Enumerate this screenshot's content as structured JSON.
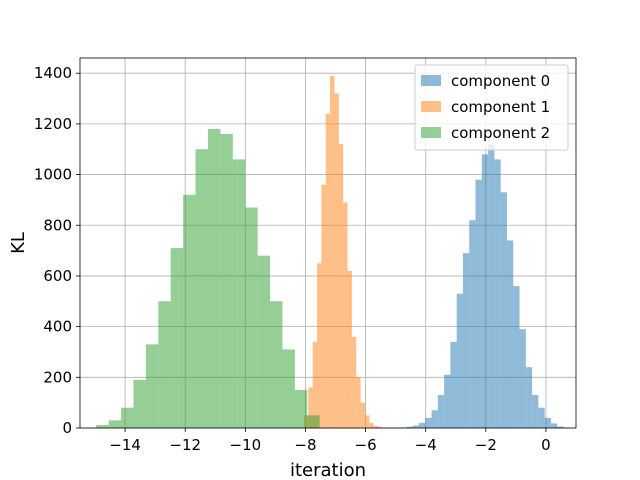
{
  "chart_data": {
    "type": "bar",
    "subtype": "histogram",
    "title": "",
    "xlabel": "iteration",
    "ylabel": "KL",
    "xlim": [
      -15.5,
      1.0
    ],
    "ylim": [
      0,
      1460
    ],
    "xticks": [
      -14,
      -12,
      -10,
      -8,
      -6,
      -4,
      -2,
      0
    ],
    "xtick_labels": [
      "−14",
      "−12",
      "−10",
      "−8",
      "−6",
      "−4",
      "−2",
      "0"
    ],
    "yticks": [
      0,
      200,
      400,
      600,
      800,
      1000,
      1200,
      1400
    ],
    "grid": true,
    "legend_position": "top-right",
    "series": [
      {
        "name": "component 0",
        "color": "#1f77b4",
        "opacity": 0.5,
        "bin_start": -4.85,
        "bin_width": 0.209,
        "values": [
          2,
          5,
          10,
          20,
          40,
          70,
          130,
          210,
          340,
          530,
          690,
          820,
          980,
          1080,
          1120,
          1060,
          930,
          740,
          560,
          390,
          240,
          130,
          80,
          40,
          18,
          6,
          2
        ]
      },
      {
        "name": "component 1",
        "color": "#ff7f0e",
        "opacity": 0.5,
        "bin_start": -8.05,
        "bin_width": 0.145,
        "values": [
          50,
          160,
          340,
          650,
          960,
          1240,
          1390,
          1320,
          1120,
          890,
          620,
          360,
          200,
          100,
          50,
          20,
          8,
          4
        ]
      },
      {
        "name": "component 2",
        "color": "#2ca02c",
        "opacity": 0.5,
        "bin_start": -14.96,
        "bin_width": 0.413,
        "values": [
          12,
          30,
          80,
          190,
          330,
          500,
          710,
          920,
          1100,
          1180,
          1160,
          1060,
          870,
          680,
          500,
          310,
          150,
          50
        ]
      }
    ]
  }
}
